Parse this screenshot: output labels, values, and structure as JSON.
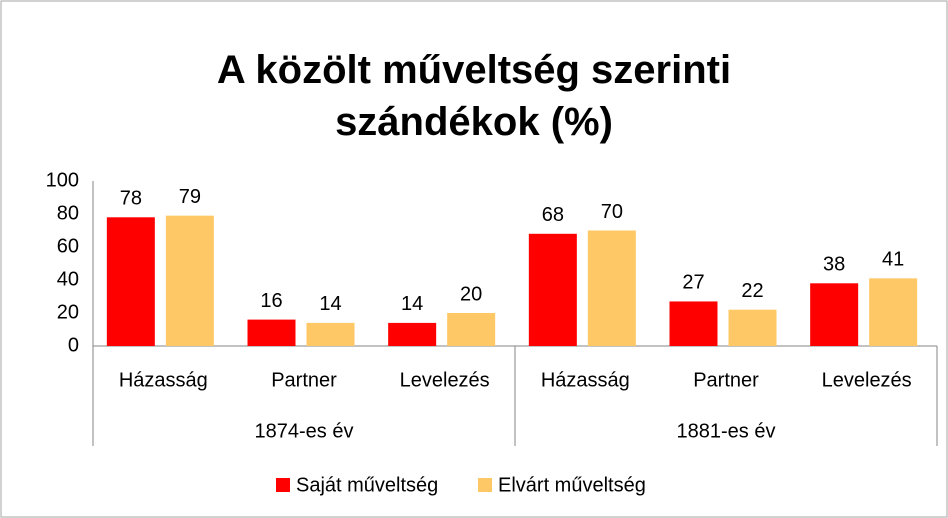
{
  "chart_data": {
    "type": "bar",
    "title": "A közölt műveltség szerinti szándékok (%)",
    "categories": [
      "Házasság",
      "Partner",
      "Levelezés",
      "Házasság",
      "Partner",
      "Levelezés"
    ],
    "category_groups": [
      "1874-es év",
      "1881-es év"
    ],
    "series": [
      {
        "name": "Saját műveltség",
        "color": "#ff0000",
        "values": [
          78,
          16,
          14,
          68,
          27,
          38
        ]
      },
      {
        "name": "Elvárt műveltség",
        "color": "#ffc866",
        "values": [
          79,
          14,
          20,
          70,
          22,
          41
        ]
      }
    ],
    "ylim": [
      0,
      100
    ],
    "yticks": [
      0,
      20,
      40,
      60,
      80,
      100
    ],
    "grid": false,
    "legend": "bottom"
  }
}
